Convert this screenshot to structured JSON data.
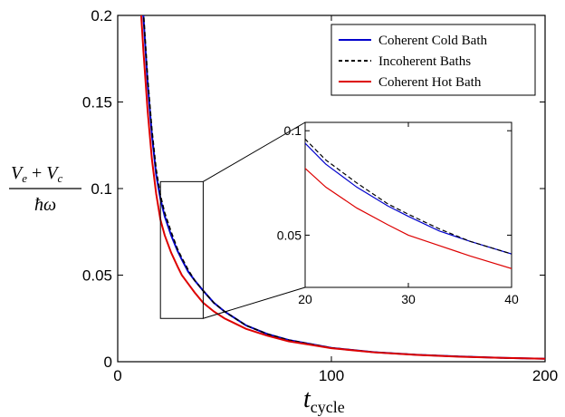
{
  "chart_data": {
    "type": "line",
    "xlabel": "t",
    "xlabel_sub": "cycle",
    "ylabel_numerator": [
      "V",
      "e",
      " + ",
      "V",
      "c"
    ],
    "ylabel_denominator": "ħω",
    "xlim": [
      0,
      200
    ],
    "ylim": [
      0,
      0.2
    ],
    "xticks": [
      "0",
      "100",
      "200"
    ],
    "yticks": [
      "0",
      "0.05",
      "0.1",
      "0.15",
      "0.2"
    ],
    "grid": false,
    "legend_position": "top-right",
    "series": [
      {
        "name": "Coherent Cold Bath",
        "color": "#0000cc",
        "dash": "solid",
        "x": [
          12,
          14,
          16,
          18,
          20,
          22,
          25,
          28,
          30,
          33,
          36,
          40,
          45,
          50,
          60,
          70,
          80,
          100,
          120,
          140,
          160,
          180,
          200
        ],
        "y": [
          0.2,
          0.161,
          0.131,
          0.108,
          0.094,
          0.084,
          0.073,
          0.064,
          0.059,
          0.052,
          0.047,
          0.041,
          0.034,
          0.029,
          0.021,
          0.016,
          0.0125,
          0.008,
          0.0055,
          0.004,
          0.003,
          0.0022,
          0.0017
        ]
      },
      {
        "name": "Incoherent Baths",
        "color": "#000000",
        "dash": "dashed",
        "x": [
          12,
          14,
          16,
          18,
          20,
          22,
          25,
          28,
          30,
          33,
          36,
          40,
          45,
          50,
          60,
          70,
          80,
          100,
          120,
          140,
          160,
          180,
          200
        ],
        "y": [
          0.203,
          0.164,
          0.134,
          0.111,
          0.096,
          0.086,
          0.075,
          0.065,
          0.06,
          0.053,
          0.047,
          0.041,
          0.034,
          0.029,
          0.021,
          0.016,
          0.0125,
          0.008,
          0.0055,
          0.004,
          0.003,
          0.0022,
          0.0017
        ]
      },
      {
        "name": "Coherent Hot Bath",
        "color": "#dd0000",
        "dash": "solid",
        "x": [
          11,
          12,
          14,
          16,
          18,
          20,
          22,
          25,
          28,
          30,
          33,
          36,
          40,
          45,
          50,
          60,
          70,
          80,
          100,
          120,
          140,
          160,
          180,
          200
        ],
        "y": [
          0.2,
          0.18,
          0.145,
          0.117,
          0.097,
          0.082,
          0.073,
          0.063,
          0.055,
          0.05,
          0.045,
          0.04,
          0.034,
          0.029,
          0.025,
          0.019,
          0.015,
          0.0118,
          0.0078,
          0.0054,
          0.0039,
          0.0029,
          0.0022,
          0.0017
        ]
      }
    ],
    "inset": {
      "xlim": [
        20,
        40
      ],
      "ylim": [
        0.025,
        0.104
      ],
      "xticks": [
        "20",
        "30",
        "40"
      ],
      "yticks": [
        "0.05",
        "0.1"
      ],
      "zoom_box": {
        "x": [
          20,
          40
        ],
        "y": [
          0.025,
          0.104
        ]
      }
    }
  }
}
